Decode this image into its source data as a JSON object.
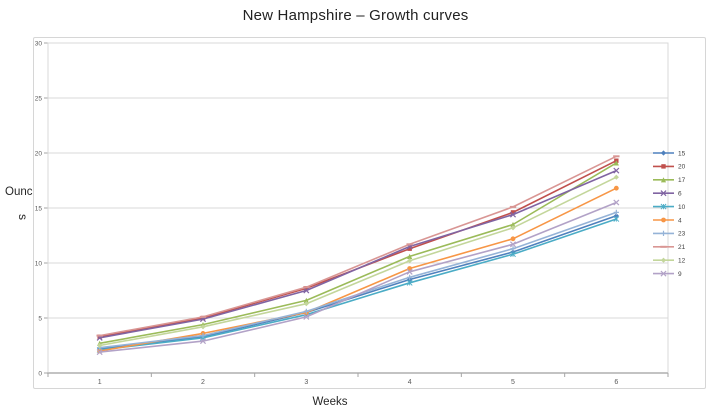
{
  "chart_data": {
    "type": "line",
    "title": "New Hampshire – Growth curves",
    "xlabel": "Weeks",
    "ylabel": "Ounces",
    "ylabel_line1": "Ounce",
    "ylabel_line2": "s",
    "x": [
      1,
      2,
      3,
      4,
      5,
      6
    ],
    "xtick_labels": [
      "1",
      "2",
      "3",
      "4",
      "5",
      "6"
    ],
    "yticks": [
      0,
      5,
      10,
      15,
      20,
      25,
      30
    ],
    "ylim": [
      0,
      30
    ],
    "grid": true,
    "legend_position": "right",
    "series": [
      {
        "name": "15",
        "color": "#4F81BD",
        "marker": "diamond",
        "values": [
          2.2,
          3.3,
          5.5,
          8.5,
          11.0,
          14.3
        ]
      },
      {
        "name": "20",
        "color": "#C0504D",
        "marker": "square",
        "values": [
          3.3,
          5.0,
          7.7,
          11.3,
          14.6,
          19.3
        ]
      },
      {
        "name": "17",
        "color": "#9BBB59",
        "marker": "triangle",
        "values": [
          2.7,
          4.4,
          6.6,
          10.6,
          13.5,
          19.1
        ]
      },
      {
        "name": "6",
        "color": "#8064A2",
        "marker": "x",
        "values": [
          3.2,
          4.9,
          7.5,
          11.5,
          14.4,
          18.4
        ]
      },
      {
        "name": "10",
        "color": "#4BACC6",
        "marker": "asterisk",
        "values": [
          2.1,
          3.2,
          5.3,
          8.2,
          10.8,
          14.0
        ]
      },
      {
        "name": "4",
        "color": "#F79646",
        "marker": "circle",
        "values": [
          2.0,
          3.6,
          5.5,
          9.5,
          12.2,
          16.8
        ]
      },
      {
        "name": "23",
        "color": "#95B3D7",
        "marker": "plus",
        "values": [
          2.3,
          3.4,
          5.6,
          8.7,
          11.3,
          14.6
        ]
      },
      {
        "name": "21",
        "color": "#D99694",
        "marker": "dash",
        "values": [
          3.4,
          5.1,
          7.8,
          11.7,
          15.1,
          19.7
        ]
      },
      {
        "name": "12",
        "color": "#C3D69B",
        "marker": "diamond",
        "values": [
          2.5,
          4.2,
          6.3,
          10.2,
          13.2,
          17.8
        ]
      },
      {
        "name": "9",
        "color": "#B2A2C7",
        "marker": "x",
        "values": [
          1.9,
          2.9,
          5.1,
          9.2,
          11.7,
          15.5
        ]
      }
    ],
    "colors": {
      "grid": "#d9d9d9",
      "plot_border": "#d9d9d9",
      "axis_line": "#c3c3c3",
      "tick": "#a6a6a6",
      "tick_text": "#595959",
      "legend_text": "#404040"
    }
  }
}
